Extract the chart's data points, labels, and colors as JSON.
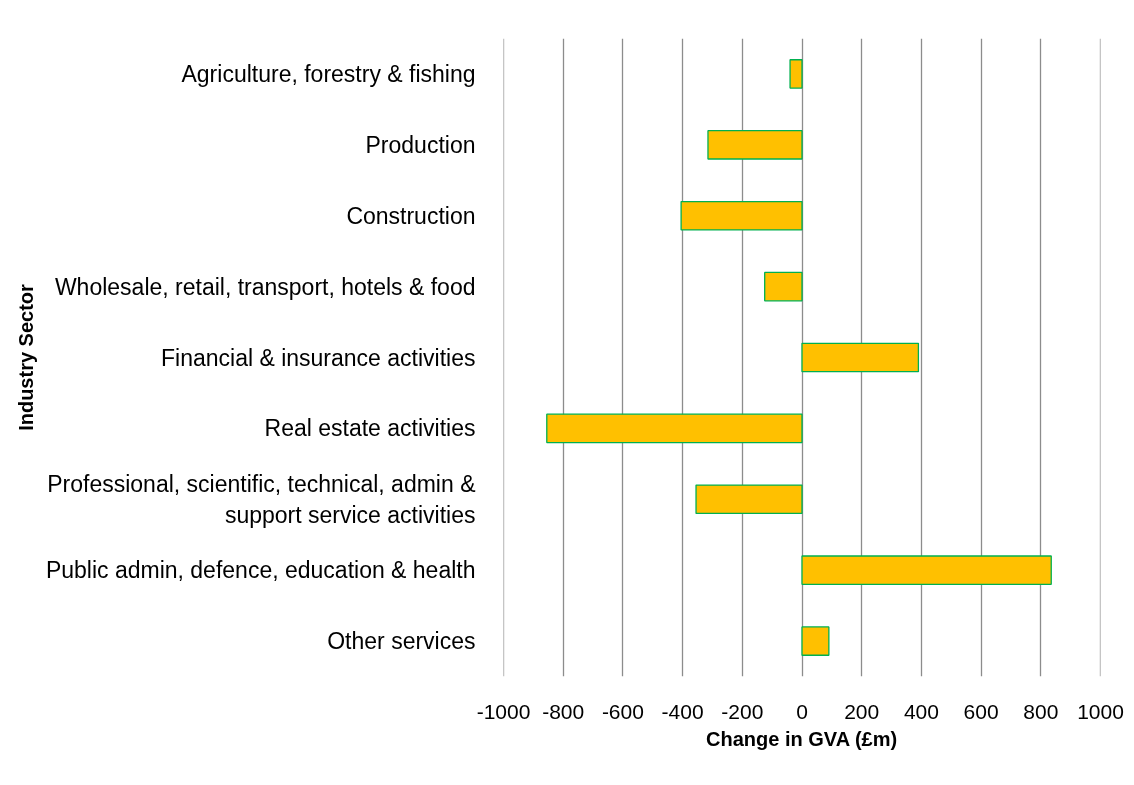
{
  "chart_data": {
    "type": "bar",
    "orientation": "horizontal",
    "categories": [
      "Agriculture, forestry & fishing",
      "Production",
      "Construction",
      "Wholesale, retail, transport, hotels & food",
      "Financial & insurance activities",
      "Real estate activities",
      "Professional, scientific, technical, admin & support service activities",
      "Public admin, defence, education & health",
      "Other services"
    ],
    "values": [
      -40,
      -315,
      -405,
      -125,
      390,
      -855,
      -355,
      835,
      90
    ],
    "color": "#ffc000",
    "xlabel": "Change in GVA (£m)",
    "ylabel": "Industry Sector",
    "xlim": [
      -1000,
      1000
    ],
    "xticks": [
      -1000,
      -800,
      -600,
      -400,
      -200,
      0,
      200,
      400,
      600,
      800,
      1000
    ],
    "grid": "x"
  }
}
